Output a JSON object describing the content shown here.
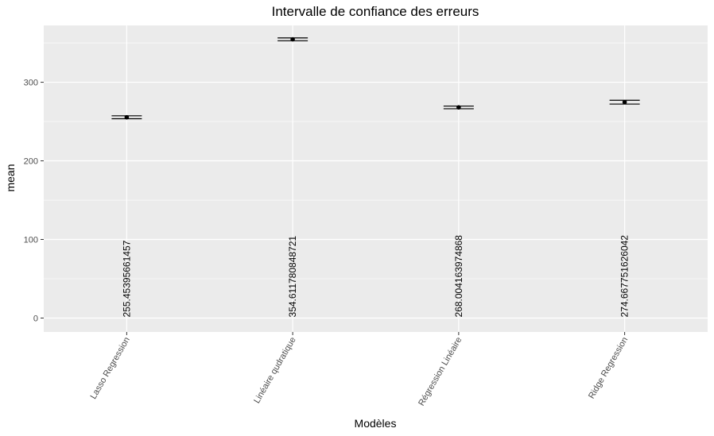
{
  "chart_data": {
    "type": "errorbar",
    "title": "Intervalle de confiance des erreurs",
    "xlabel": "Modèles",
    "ylabel": "mean",
    "categories": [
      "Lasso Regression",
      "Linéaire qudratique",
      "Régression Linéaire",
      "Ridge Regression"
    ],
    "series": [
      {
        "values": [
          255.45395661457,
          354.611780848721,
          268.004163974868,
          274.667751626042
        ],
        "lower": [
          253.6,
          352.8,
          266.3,
          272.2
        ],
        "upper": [
          257.3,
          356.4,
          269.7,
          277.1
        ]
      }
    ],
    "data_labels": [
      "255.45395661457",
      "354.611780848721",
      "268.004163974868",
      "274.667751626042"
    ],
    "yticks": [
      0,
      100,
      200,
      300
    ],
    "ylim": [
      -17.7,
      372.3
    ],
    "grid": true,
    "colors": {
      "panel": "#ebebeb",
      "grid": "#ffffff",
      "marks": "#000000",
      "tick_text": "#4d4d4d"
    }
  }
}
